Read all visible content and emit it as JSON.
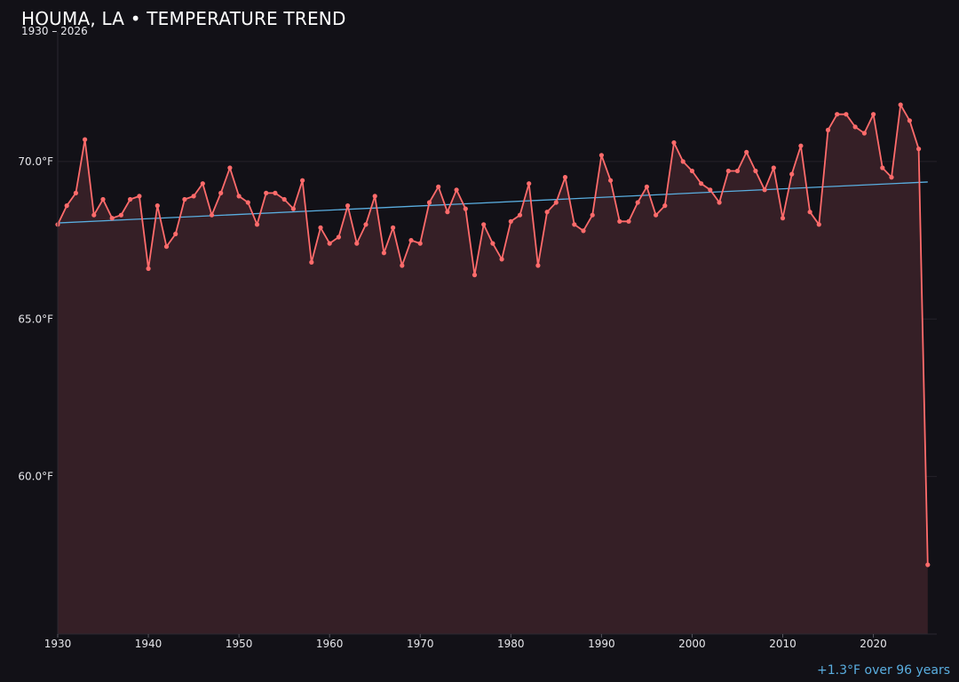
{
  "header": {
    "title": "HOUMA, LA • TEMPERATURE TREND",
    "subtitle": "1930 – 2026"
  },
  "footer": {
    "trend_note": "+1.3°F over 96 years"
  },
  "colors": {
    "background": "#121117",
    "series_line": "#ff6b6b",
    "area_fill": "#351f26",
    "trend_line": "#5aaee0",
    "grid": "#25222a"
  },
  "chart_data": {
    "type": "line",
    "title": "HOUMA, LA • TEMPERATURE TREND",
    "subtitle": "1930 – 2026",
    "xlabel": "",
    "ylabel": "",
    "xlim": [
      1930,
      2027
    ],
    "ylim": [
      55,
      74
    ],
    "x_ticks": [
      1930,
      1940,
      1950,
      1960,
      1970,
      1980,
      1990,
      2000,
      2010,
      2020
    ],
    "y_ticks": [
      60,
      65,
      70
    ],
    "y_tick_labels": [
      "60.0°F",
      "65.0°F",
      "70.0°F"
    ],
    "grid": "horizontal",
    "area_fill": true,
    "series": [
      {
        "x": [
          1930,
          1931,
          1932,
          1933,
          1934,
          1935,
          1936,
          1937,
          1938,
          1939,
          1940,
          1941,
          1942,
          1943,
          1944,
          1945,
          1946,
          1947,
          1948,
          1949,
          1950,
          1951,
          1952,
          1953,
          1954,
          1955,
          1956,
          1957,
          1958,
          1959,
          1960,
          1961,
          1962,
          1963,
          1964,
          1965,
          1966,
          1967,
          1968,
          1969,
          1970,
          1971,
          1972,
          1973,
          1974,
          1975,
          1976,
          1977,
          1978,
          1979,
          1980,
          1981,
          1982,
          1983,
          1984,
          1985,
          1986,
          1987,
          1988,
          1989,
          1990,
          1991,
          1992,
          1993,
          1994,
          1995,
          1996,
          1997,
          1998,
          1999,
          2000,
          2001,
          2002,
          2003,
          2004,
          2005,
          2006,
          2007,
          2008,
          2009,
          2010,
          2011,
          2012,
          2013,
          2014,
          2015,
          2016,
          2017,
          2018,
          2019,
          2020,
          2021,
          2022,
          2023,
          2024,
          2025,
          2026
        ],
        "values": [
          68.0,
          68.6,
          69.0,
          70.7,
          68.3,
          68.8,
          68.2,
          68.3,
          68.8,
          68.9,
          66.6,
          68.6,
          67.3,
          67.7,
          68.8,
          68.9,
          69.3,
          68.3,
          69.0,
          69.8,
          68.9,
          68.7,
          68.0,
          69.0,
          69.0,
          68.8,
          68.5,
          69.4,
          66.8,
          67.9,
          67.4,
          67.6,
          68.6,
          67.4,
          68.0,
          68.9,
          67.1,
          67.9,
          66.7,
          67.5,
          67.4,
          68.7,
          69.2,
          68.4,
          69.1,
          68.5,
          66.4,
          68.0,
          67.4,
          66.9,
          68.1,
          68.3,
          69.3,
          66.7,
          68.4,
          68.7,
          69.5,
          68.0,
          67.8,
          68.3,
          70.2,
          69.4,
          68.1,
          68.1,
          68.7,
          69.2,
          68.3,
          68.6,
          70.6,
          70.0,
          69.7,
          69.3,
          69.1,
          68.7,
          69.7,
          69.7,
          70.3,
          69.7,
          69.1,
          69.8,
          68.2,
          69.6,
          70.5,
          68.4,
          68.0,
          71.0,
          71.5,
          71.5,
          71.1,
          70.9,
          71.5,
          69.8,
          69.5,
          71.8,
          71.3,
          70.4,
          57.2
        ]
      },
      {
        "x": [
          1930,
          2026
        ],
        "values": [
          68.05,
          69.35
        ]
      }
    ]
  }
}
